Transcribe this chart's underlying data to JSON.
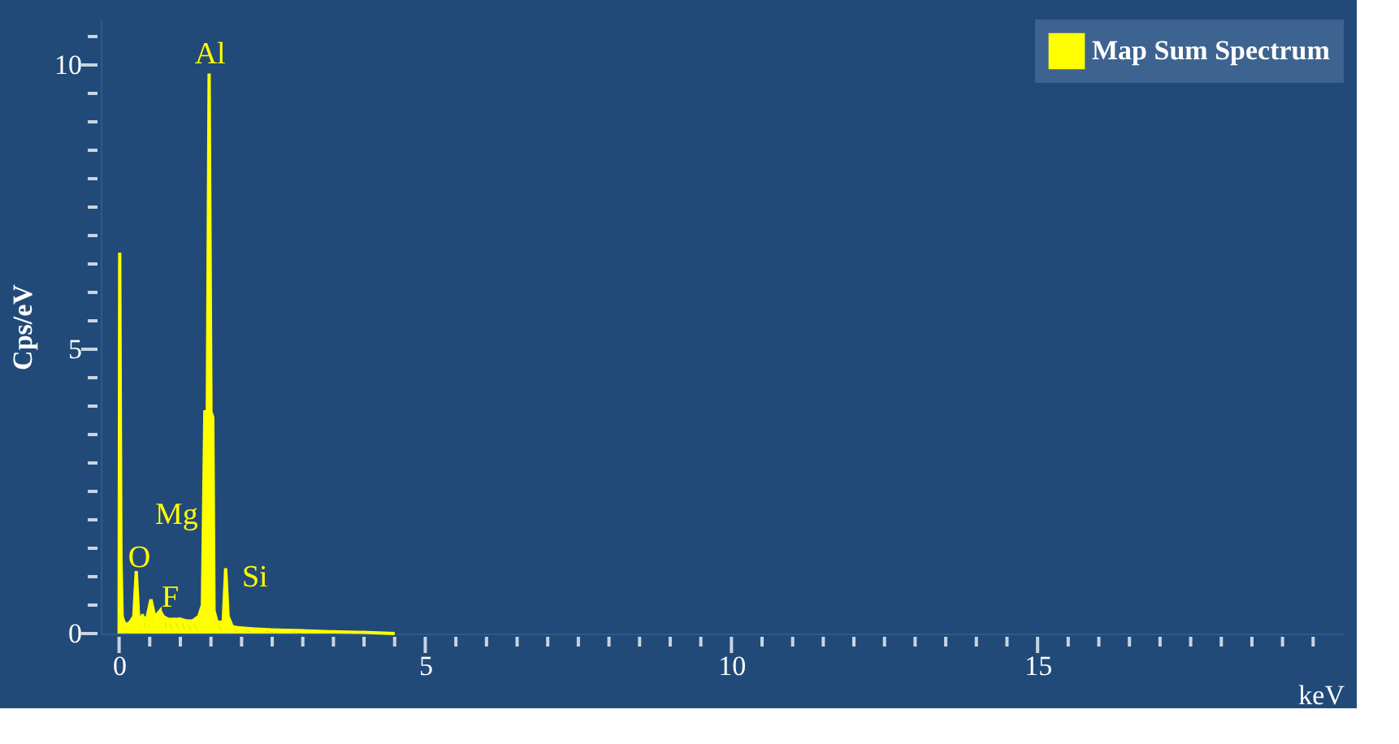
{
  "chart_data": {
    "type": "area",
    "xlabel": "keV",
    "ylabel": "Cps/eV",
    "legend": "top right",
    "grid": false,
    "xlim": [
      -0.3,
      20
    ],
    "ylim": [
      0,
      10.8
    ],
    "xticks": [
      0,
      {
        "value": 0.5,
        "label": null
      },
      {
        "value": 1,
        "label": null
      },
      {
        "value": 1.5,
        "label": null
      },
      {
        "value": 2,
        "label": null
      },
      {
        "value": 2.5,
        "label": null
      },
      {
        "value": 3,
        "label": null
      },
      {
        "value": 3.5,
        "label": null
      },
      {
        "value": 4,
        "label": null
      },
      {
        "value": 4.5,
        "label": null
      },
      5,
      {
        "value": 5.5,
        "label": null
      },
      {
        "value": 6,
        "label": null
      },
      {
        "value": 6.5,
        "label": null
      },
      {
        "value": 7,
        "label": null
      },
      {
        "value": 7.5,
        "label": null
      },
      {
        "value": 8,
        "label": null
      },
      {
        "value": 8.5,
        "label": null
      },
      {
        "value": 9,
        "label": null
      },
      {
        "value": 9.5,
        "label": null
      },
      10,
      {
        "value": 10.5,
        "label": null
      },
      {
        "value": 11,
        "label": null
      },
      {
        "value": 11.5,
        "label": null
      },
      {
        "value": 12,
        "label": null
      },
      {
        "value": 12.5,
        "label": null
      },
      {
        "value": 13,
        "label": null
      },
      {
        "value": 13.5,
        "label": null
      },
      {
        "value": 14,
        "label": null
      },
      {
        "value": 14.5,
        "label": null
      },
      15,
      {
        "value": 15.5,
        "label": null
      },
      {
        "value": 16,
        "label": null
      },
      {
        "value": 16.5,
        "label": null
      },
      {
        "value": 17,
        "label": null
      },
      {
        "value": 17.5,
        "label": null
      },
      {
        "value": 18,
        "label": null
      },
      {
        "value": 18.5,
        "label": null
      },
      {
        "value": 19,
        "label": null
      },
      {
        "value": 19.5,
        "label": null
      }
    ],
    "yticks": [
      0,
      {
        "value": 0.5,
        "label": null
      },
      {
        "value": 1,
        "label": null
      },
      {
        "value": 1.5,
        "label": null
      },
      {
        "value": 2,
        "label": null
      },
      {
        "value": 2.5,
        "label": null
      },
      {
        "value": 3,
        "label": null
      },
      {
        "value": 3.5,
        "label": null
      },
      {
        "value": 4,
        "label": null
      },
      {
        "value": 4.5,
        "label": null
      },
      5,
      {
        "value": 5.5,
        "label": null
      },
      {
        "value": 6,
        "label": null
      },
      {
        "value": 6.5,
        "label": null
      },
      {
        "value": 7,
        "label": null
      },
      {
        "value": 7.5,
        "label": null
      },
      {
        "value": 8,
        "label": null
      },
      {
        "value": 8.5,
        "label": null
      },
      {
        "value": 9,
        "label": null
      },
      {
        "value": 9.5,
        "label": null
      },
      10,
      {
        "value": 10.5,
        "label": null
      }
    ],
    "series": [
      {
        "name": "Map Sum Spectrum",
        "color": "#ffff00",
        "x": [
          0,
          0.01,
          0.03,
          0.05,
          0.08,
          0.12,
          0.18,
          0.24,
          0.28,
          0.32,
          0.38,
          0.45,
          0.52,
          0.58,
          0.63,
          0.67,
          0.72,
          0.8,
          0.9,
          1.0,
          1.1,
          1.2,
          1.3,
          1.36,
          1.4,
          1.44,
          1.47,
          1.5,
          1.53,
          1.55,
          1.6,
          1.7,
          1.74,
          1.78,
          1.85,
          1.95,
          2.2,
          2.6,
          3.0,
          3.5,
          4.0,
          4.5
        ],
        "values": [
          0,
          6.7,
          1.3,
          0.3,
          0.2,
          0.15,
          0.2,
          0.3,
          1.1,
          0.25,
          0.3,
          0.25,
          0.6,
          0.3,
          0.35,
          0.4,
          0.3,
          0.25,
          0.25,
          0.25,
          0.22,
          0.22,
          0.3,
          0.5,
          3.9,
          3.9,
          9.85,
          3.9,
          3.8,
          0.4,
          0.2,
          0.2,
          1.15,
          0.3,
          0.12,
          0.1,
          0.08,
          0.06,
          0.05,
          0.03,
          0.02,
          0
        ]
      }
    ],
    "annotations": [
      "Al",
      "Mg",
      "O",
      "F",
      "Si"
    ]
  }
}
